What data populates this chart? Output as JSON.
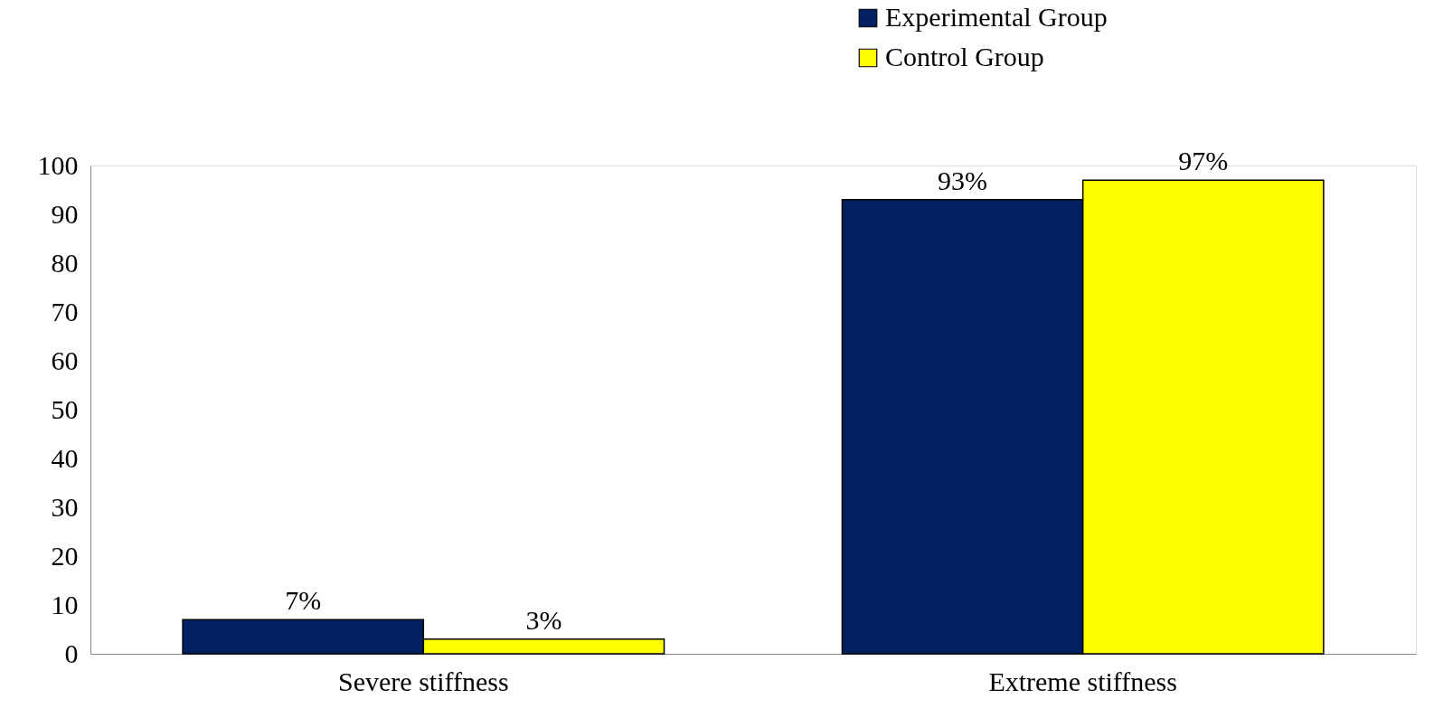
{
  "chart_data": {
    "type": "bar",
    "categories": [
      "Severe stiffness",
      "Extreme stiffness"
    ],
    "series": [
      {
        "name": "Experimental Group",
        "color": "#002060",
        "values": [
          7,
          93
        ],
        "value_labels": [
          "7%",
          "93%"
        ]
      },
      {
        "name": "Control Group",
        "color": "#ffff00",
        "values": [
          3,
          97
        ],
        "value_labels": [
          "3%",
          "97%"
        ]
      }
    ],
    "ylim": [
      0,
      100
    ],
    "yticks": [
      0,
      10,
      20,
      30,
      40,
      50,
      60,
      70,
      80,
      90,
      100
    ],
    "grid": false,
    "legend": "top right"
  }
}
